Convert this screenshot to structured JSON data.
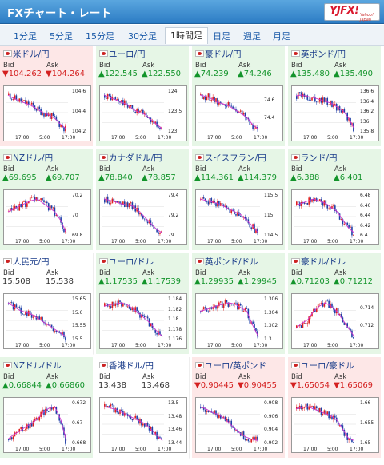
{
  "header": {
    "title": "FXチャート・レート",
    "logo_text": "YJFX!",
    "logo_sub": "Yahoo! Japan"
  },
  "tabs": [
    {
      "label": "1分足"
    },
    {
      "label": "5分足"
    },
    {
      "label": "15分足"
    },
    {
      "label": "30分足"
    },
    {
      "label": "1時間足",
      "active": true
    },
    {
      "label": "日足"
    },
    {
      "label": "週足"
    },
    {
      "label": "月足"
    }
  ],
  "labels": {
    "bid": "Bid",
    "ask": "Ask"
  },
  "colors": {
    "up": "#13942b",
    "down": "#d42020",
    "candle_up": "#e02020",
    "candle_down": "#1e3fa8",
    "ma": "#cc33cc"
  },
  "pairs": [
    {
      "name": "米ドル/円",
      "dir": "down",
      "bid": "▼104.262",
      "ask": "▼104.264",
      "yticks": [
        "104.6",
        "104.4",
        "104.2"
      ],
      "xticks": [
        "17:00",
        "5:00",
        "17:00"
      ],
      "trend": [
        104.55,
        104.52,
        104.5,
        104.48,
        104.46,
        104.43,
        104.4,
        104.38,
        104.35,
        104.3,
        104.26
      ]
    },
    {
      "name": "ユーロ/円",
      "dir": "up",
      "bid": "▲122.545",
      "ask": "▲122.550",
      "yticks": [
        "124",
        "123.5",
        "123"
      ],
      "xticks": [
        "17:00",
        "5:00",
        "17:00"
      ],
      "trend": [
        123.9,
        123.8,
        123.7,
        123.6,
        123.5,
        123.3,
        123.2,
        123.1,
        122.9,
        122.7,
        122.5
      ]
    },
    {
      "name": "豪ドル/円",
      "dir": "up",
      "bid": "▲74.239",
      "ask": "▲74.246",
      "yticks": [
        "74.6",
        "74.4"
      ],
      "xticks": [
        "17:00",
        "5:00",
        "17:00"
      ],
      "trend": [
        74.7,
        74.68,
        74.65,
        74.6,
        74.58,
        74.55,
        74.5,
        74.45,
        74.4,
        74.3,
        74.24
      ]
    },
    {
      "name": "英ポンド/円",
      "dir": "up",
      "bid": "▲135.480",
      "ask": "▲135.490",
      "yticks": [
        "136.6",
        "136.4",
        "136.2",
        "136",
        "135.8"
      ],
      "xticks": [
        "17:00",
        "5:00",
        "17:00"
      ],
      "trend": [
        136.4,
        136.42,
        136.38,
        136.35,
        136.3,
        136.25,
        136.2,
        136.1,
        136.0,
        135.8,
        135.5
      ]
    },
    {
      "name": "NZドル/円",
      "dir": "up",
      "bid": "▲69.695",
      "ask": "▲69.707",
      "yticks": [
        "70.2",
        "70",
        "69.8"
      ],
      "xticks": [
        "17:00",
        "5:00",
        "17:00"
      ],
      "trend": [
        69.95,
        69.98,
        70.02,
        70.05,
        70.08,
        70.1,
        70.05,
        70.0,
        69.95,
        69.85,
        69.7
      ]
    },
    {
      "name": "カナダドル/円",
      "dir": "up",
      "bid": "▲78.840",
      "ask": "▲78.857",
      "yticks": [
        "79.4",
        "79.2",
        "79"
      ],
      "xticks": [
        "17:00",
        "5:00",
        "17:00"
      ],
      "trend": [
        79.4,
        79.38,
        79.35,
        79.32,
        79.3,
        79.28,
        79.2,
        79.1,
        79.0,
        78.9,
        78.84
      ]
    },
    {
      "name": "スイスフラン/円",
      "dir": "up",
      "bid": "▲114.361",
      "ask": "▲114.379",
      "yticks": [
        "115.5",
        "115",
        "114.5"
      ],
      "xticks": [
        "17:00",
        "5:00",
        "17:00"
      ],
      "trend": [
        115.55,
        115.5,
        115.45,
        115.4,
        115.3,
        115.2,
        115.1,
        115.0,
        114.8,
        114.6,
        114.36
      ]
    },
    {
      "name": "ランド/円",
      "dir": "up",
      "bid": "▲6.388",
      "ask": "▲6.401",
      "yticks": [
        "6.48",
        "6.46",
        "6.44",
        "6.42",
        "6.4"
      ],
      "xticks": [
        "17:00",
        "5:00",
        "17:00"
      ],
      "trend": [
        6.455,
        6.46,
        6.465,
        6.47,
        6.465,
        6.46,
        6.45,
        6.44,
        6.42,
        6.4,
        6.388
      ]
    },
    {
      "name": "人民元/円",
      "dir": "flat",
      "bid": "15.508",
      "ask": "15.538",
      "yticks": [
        "15.65",
        "15.6",
        "15.55",
        "15.5"
      ],
      "xticks": [
        "17:00",
        "5:00",
        "17:00"
      ],
      "trend": [
        15.6,
        15.59,
        15.58,
        15.575,
        15.57,
        15.56,
        15.55,
        15.54,
        15.53,
        15.52,
        15.51
      ]
    },
    {
      "name": "ユーロ/ドル",
      "dir": "up",
      "bid": "▲1.17535",
      "ask": "▲1.17539",
      "yticks": [
        "1.184",
        "1.182",
        "1.18",
        "1.178",
        "1.176"
      ],
      "xticks": [
        "17:00",
        "5:00",
        "17:00"
      ],
      "trend": [
        1.1815,
        1.1818,
        1.182,
        1.1822,
        1.1818,
        1.181,
        1.18,
        1.179,
        1.178,
        1.1765,
        1.1753
      ]
    },
    {
      "name": "英ポンド/ドル",
      "dir": "up",
      "bid": "▲1.29935",
      "ask": "▲1.29945",
      "yticks": [
        "1.306",
        "1.304",
        "1.302",
        "1.3"
      ],
      "xticks": [
        "17:00",
        "5:00",
        "17:00"
      ],
      "trend": [
        1.303,
        1.3032,
        1.3035,
        1.3038,
        1.304,
        1.3042,
        1.304,
        1.3035,
        1.303,
        1.301,
        1.2993
      ]
    },
    {
      "name": "豪ドル/ドル",
      "dir": "up",
      "bid": "▲0.71203",
      "ask": "▲0.71212",
      "yticks": [
        "0.714",
        "0.712"
      ],
      "xticks": [
        "17:00",
        "5:00",
        "17:00"
      ],
      "trend": [
        0.7125,
        0.7128,
        0.713,
        0.7135,
        0.7138,
        0.714,
        0.7138,
        0.7135,
        0.713,
        0.7125,
        0.712
      ]
    },
    {
      "name": "NZドル/ドル",
      "dir": "up",
      "bid": "▲0.66844",
      "ask": "▲0.66860",
      "yticks": [
        "0.672",
        "0.67",
        "0.668"
      ],
      "xticks": [
        "17:00",
        "5:00",
        "17:00"
      ],
      "trend": [
        0.6685,
        0.6688,
        0.669,
        0.6693,
        0.6695,
        0.6698,
        0.6702,
        0.6705,
        0.6706,
        0.6698,
        0.6684
      ]
    },
    {
      "name": "香港ドル/円",
      "dir": "flat",
      "bid": "13.438",
      "ask": "13.468",
      "yticks": [
        "13.5",
        "13.48",
        "13.46",
        "13.44"
      ],
      "xticks": [
        "17:00",
        "5:00",
        "17:00"
      ],
      "trend": [
        13.5,
        13.498,
        13.495,
        13.49,
        13.485,
        13.48,
        13.475,
        13.47,
        13.46,
        13.45,
        13.44
      ]
    },
    {
      "name": "ユーロ/英ポンド",
      "dir": "down",
      "bid": "▼0.90445",
      "ask": "▼0.90455",
      "yticks": [
        "0.908",
        "0.906",
        "0.904",
        "0.902"
      ],
      "xticks": [
        "17:00",
        "5:00",
        "17:00"
      ],
      "trend": [
        0.9075,
        0.9073,
        0.907,
        0.9068,
        0.9065,
        0.906,
        0.9055,
        0.905,
        0.9047,
        0.9045,
        0.9044
      ]
    },
    {
      "name": "ユーロ/豪ドル",
      "dir": "down",
      "bid": "▼1.65054",
      "ask": "▼1.65069",
      "yticks": [
        "1.66",
        "1.655",
        "1.65"
      ],
      "xticks": [
        "17:00",
        "5:00",
        "17:00"
      ],
      "trend": [
        1.6575,
        1.6578,
        1.658,
        1.6575,
        1.657,
        1.6565,
        1.656,
        1.655,
        1.653,
        1.651,
        1.6505
      ]
    }
  ]
}
